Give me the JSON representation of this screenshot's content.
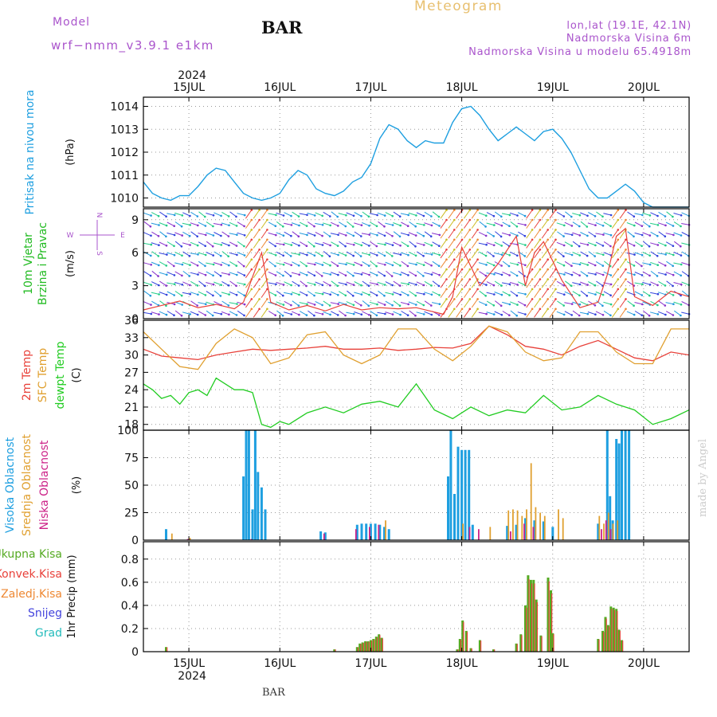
{
  "header": {
    "model_label": "Model",
    "model_name": "wrf−nmm_v3.9.1  e1km",
    "station": "BAR",
    "title": "Meteogram",
    "lonlat": "lon,lat (19.1E, 42.1N)",
    "altitude": "Nadmorska Visina 6m",
    "model_altitude": "Nadmorska Visina u modelu 65.4918m",
    "footer_station": "BAR",
    "watermark": "made by Angel"
  },
  "colors": {
    "pressure": "#1e9fe0",
    "t2m": "#e8413a",
    "tsfc": "#e0a030",
    "dewpt": "#22cc22",
    "high_cloud": "#1e9fe0",
    "mid_cloud": "#e0a030",
    "low_cloud": "#cc2288",
    "total_rain": "#55aa22",
    "conv_rain": "#e8413a",
    "freezing_rain": "#ee8833",
    "snow": "#4444dd",
    "hail": "#22bbbb",
    "wind_label": "#22bb22",
    "compass": "#aa55cc",
    "title_gold": "#e8c070",
    "header_purple": "#aa55cc"
  },
  "chart_data": {
    "type": "line",
    "x_axis": {
      "year": "2024",
      "tick_labels": [
        "15JUL",
        "16JUL",
        "17JUL",
        "18JUL",
        "19JUL",
        "20JUL"
      ],
      "range_days": [
        14.5,
        20.5
      ]
    },
    "panels": [
      {
        "name": "pressure",
        "ylabel": "Pritisak na nivou mora",
        "unit": "(hPa)",
        "ylim": [
          1009.6,
          1014.4
        ],
        "yticks": [
          1010,
          1011,
          1012,
          1013,
          1014
        ],
        "series": [
          {
            "color_key": "pressure",
            "x": [
              14.5,
              14.6,
              14.7,
              14.8,
              14.9,
              15.0,
              15.1,
              15.2,
              15.3,
              15.4,
              15.5,
              15.6,
              15.7,
              15.8,
              15.9,
              16.0,
              16.1,
              16.2,
              16.3,
              16.4,
              16.5,
              16.6,
              16.7,
              16.8,
              16.9,
              17.0,
              17.1,
              17.2,
              17.3,
              17.4,
              17.5,
              17.6,
              17.7,
              17.8,
              17.9,
              18.0,
              18.1,
              18.2,
              18.3,
              18.4,
              18.5,
              18.6,
              18.7,
              18.8,
              18.9,
              19.0,
              19.1,
              19.2,
              19.3,
              19.4,
              19.5,
              19.6,
              19.7,
              19.8,
              19.9,
              20.0,
              20.1,
              20.2,
              20.3,
              20.4,
              20.5
            ],
            "values": [
              1010.7,
              1010.2,
              1010.0,
              1009.9,
              1010.1,
              1010.1,
              1010.5,
              1011.0,
              1011.3,
              1011.2,
              1010.7,
              1010.2,
              1010.0,
              1009.9,
              1010.0,
              1010.2,
              1010.8,
              1011.2,
              1011.0,
              1010.4,
              1010.2,
              1010.1,
              1010.3,
              1010.7,
              1010.9,
              1011.5,
              1012.6,
              1013.2,
              1013.0,
              1012.5,
              1012.2,
              1012.5,
              1012.4,
              1012.4,
              1013.3,
              1013.9,
              1014.0,
              1013.6,
              1013.0,
              1012.5,
              1012.8,
              1013.1,
              1012.8,
              1012.5,
              1012.9,
              1013.0,
              1012.6,
              1012.0,
              1011.2,
              1010.4,
              1010.0,
              1010.0,
              1010.3,
              1010.6,
              1010.3,
              1009.8,
              1009.6,
              1009.6,
              1009.6,
              1009.6,
              1009.6
            ]
          }
        ]
      },
      {
        "name": "wind",
        "ylabel_line1": "10m Vjetar",
        "ylabel_line2": "Brzina i Pravac",
        "unit": "(m/s)",
        "ylim": [
          0,
          10
        ],
        "yticks": [
          0,
          3,
          6,
          9
        ],
        "compass": {
          "n": "N",
          "s": "S",
          "e": "E",
          "w": "W"
        },
        "series": [
          {
            "color_key": "t2m",
            "x": [
              14.5,
              14.7,
              14.9,
              15.1,
              15.3,
              15.5,
              15.6,
              15.7,
              15.8,
              15.9,
              16.1,
              16.3,
              16.5,
              16.7,
              16.9,
              17.1,
              17.3,
              17.5,
              17.7,
              17.8,
              17.9,
              18.0,
              18.2,
              18.4,
              18.6,
              18.7,
              18.8,
              18.9,
              19.1,
              19.3,
              19.5,
              19.6,
              19.7,
              19.8,
              19.9,
              20.1,
              20.3,
              20.5
            ],
            "values": [
              0.8,
              1.2,
              1.6,
              1.0,
              1.3,
              0.9,
              1.5,
              3.8,
              6.0,
              1.5,
              0.8,
              1.2,
              0.7,
              1.3,
              0.8,
              1.0,
              0.9,
              1.0,
              0.6,
              0.4,
              2.0,
              6.5,
              3.0,
              5.0,
              7.5,
              3.0,
              6.0,
              7.0,
              3.5,
              1.0,
              1.5,
              4.0,
              7.5,
              8.2,
              2.0,
              1.2,
              2.5,
              2.0
            ]
          }
        ]
      },
      {
        "name": "temperature",
        "ylabel_1": "2m Temp",
        "ylabel_2": "SFC Temp",
        "ylabel_3": "dewpt Temp",
        "unit": "(C)",
        "ylim": [
          17,
          36
        ],
        "yticks": [
          18,
          21,
          24,
          27,
          30,
          33,
          36
        ],
        "series": [
          {
            "name": "2m Temp",
            "color_key": "t2m",
            "x": [
              14.5,
              14.7,
              14.9,
              15.1,
              15.3,
              15.5,
              15.7,
              15.9,
              16.1,
              16.3,
              16.5,
              16.7,
              16.9,
              17.1,
              17.3,
              17.5,
              17.7,
              17.9,
              18.1,
              18.3,
              18.5,
              18.7,
              18.9,
              19.1,
              19.3,
              19.5,
              19.7,
              19.9,
              20.1,
              20.3,
              20.5
            ],
            "values": [
              31.0,
              29.8,
              29.5,
              29.2,
              30.0,
              30.5,
              31.0,
              30.8,
              31.0,
              31.2,
              31.5,
              31.0,
              31.0,
              31.2,
              30.8,
              31.0,
              31.3,
              31.2,
              32.0,
              35.0,
              33.5,
              31.5,
              31.0,
              30.0,
              31.5,
              32.5,
              31.0,
              29.5,
              29.0,
              30.5,
              30.0
            ]
          },
          {
            "name": "SFC Temp",
            "color_key": "tsfc",
            "x": [
              14.5,
              14.7,
              14.9,
              15.1,
              15.3,
              15.5,
              15.7,
              15.9,
              16.1,
              16.3,
              16.5,
              16.7,
              16.9,
              17.1,
              17.3,
              17.5,
              17.7,
              17.9,
              18.1,
              18.3,
              18.5,
              18.7,
              18.9,
              19.1,
              19.3,
              19.5,
              19.7,
              19.9,
              20.1,
              20.3,
              20.5
            ],
            "values": [
              34.0,
              31.0,
              28.0,
              27.5,
              32.0,
              34.5,
              33.0,
              28.5,
              29.5,
              33.5,
              34.0,
              30.0,
              28.5,
              30.0,
              34.5,
              34.5,
              31.0,
              29.0,
              31.5,
              35.0,
              34.0,
              30.5,
              29.0,
              29.5,
              34.0,
              34.0,
              30.5,
              28.5,
              28.5,
              34.5,
              34.5
            ]
          },
          {
            "name": "dewpt Temp",
            "color_key": "dewpt",
            "x": [
              14.5,
              14.6,
              14.7,
              14.8,
              14.9,
              15.0,
              15.1,
              15.2,
              15.3,
              15.4,
              15.5,
              15.6,
              15.7,
              15.8,
              15.9,
              16.0,
              16.1,
              16.3,
              16.5,
              16.7,
              16.9,
              17.1,
              17.3,
              17.5,
              17.7,
              17.9,
              18.1,
              18.3,
              18.5,
              18.7,
              18.9,
              19.1,
              19.3,
              19.5,
              19.7,
              19.9,
              20.1,
              20.3,
              20.5
            ],
            "values": [
              25.0,
              24.0,
              22.5,
              23.0,
              21.5,
              23.5,
              24.0,
              23.0,
              26.0,
              25.0,
              24.0,
              24.0,
              23.5,
              18.0,
              17.5,
              18.5,
              18.0,
              20.0,
              21.0,
              20.0,
              21.5,
              22.0,
              21.0,
              25.0,
              20.5,
              19.0,
              21.0,
              19.5,
              20.5,
              20.0,
              23.0,
              20.5,
              21.0,
              23.0,
              21.5,
              20.5,
              18.0,
              19.0,
              20.5
            ]
          }
        ]
      },
      {
        "name": "clouds",
        "ylabel_1": "Visoka Oblacnost",
        "ylabel_2": "Srednja Oblacnost",
        "ylabel_3": "Niska Oblacnost",
        "unit": "(%)",
        "ylim": [
          0,
          100
        ],
        "yticks": [
          0,
          25,
          50,
          75,
          100
        ],
        "series": [
          {
            "name": "Visoka Oblacnost",
            "color_key": "high_cloud",
            "x": [
              14.75,
              15.6,
              15.63,
              15.66,
              15.7,
              15.73,
              15.76,
              15.8,
              15.84,
              16.45,
              16.5,
              16.85,
              16.9,
              16.95,
              17.0,
              17.05,
              17.1,
              17.15,
              17.2,
              17.85,
              17.88,
              17.92,
              17.96,
              18.0,
              18.04,
              18.08,
              18.12,
              18.5,
              18.6,
              18.7,
              18.8,
              18.9,
              19.0,
              19.5,
              19.6,
              19.63,
              19.66,
              19.7,
              19.73,
              19.76,
              19.8,
              19.84
            ],
            "values": [
              10,
              58,
              100,
              100,
              28,
              100,
              62,
              48,
              28,
              8,
              7,
              14,
              15,
              15,
              15,
              15,
              14,
              12,
              10,
              58,
              100,
              42,
              85,
              82,
              82,
              82,
              14,
              13,
              14,
              20,
              18,
              17,
              12,
              15,
              100,
              40,
              18,
              92,
              88,
              100,
              100,
              100
            ]
          },
          {
            "name": "Srednja Oblacnost",
            "color_key": "mid_cloud",
            "x": [
              14.8,
              15.0,
              17.15,
              18.0,
              18.3,
              18.5,
              18.55,
              18.6,
              18.65,
              18.7,
              18.75,
              18.8,
              18.85,
              18.9,
              19.05,
              19.1,
              19.5,
              19.55,
              19.6,
              19.65,
              19.7
            ],
            "values": [
              6,
              2,
              18,
              15,
              12,
              27,
              28,
              27,
              22,
              28,
              70,
              30,
              25,
              22,
              28,
              20,
              22,
              15,
              25,
              15,
              18
            ]
          },
          {
            "name": "Niska Oblacnost",
            "color_key": "low_cloud",
            "x": [
              15.0,
              15.7,
              16.5,
              16.85,
              17.0,
              17.1,
              18.1,
              18.2,
              18.55,
              18.7,
              18.8,
              19.55,
              19.6,
              19.65
            ],
            "values": [
              1,
              1,
              6,
              10,
              12,
              14,
              12,
              10,
              8,
              15,
              12,
              10,
              18,
              10
            ]
          }
        ]
      },
      {
        "name": "precip",
        "ylabel": "1hr Precip (mm)",
        "legend": [
          "Ukupna Kisa",
          "Konvek.Kisa",
          "Zaledj.Kisa",
          "Snijeg",
          "Grad"
        ],
        "ylim": [
          0,
          0.95
        ],
        "yticks": [
          0,
          0.2,
          0.4,
          0.6,
          0.8
        ],
        "ytick_labels": [
          "0",
          "0.2",
          "0.4",
          "0.6",
          "0.8"
        ],
        "series": [
          {
            "name": "Ukupna Kisa",
            "color_key": "total_rain",
            "x": [
              14.75,
              16.6,
              16.85,
              16.88,
              16.91,
              16.94,
              16.97,
              17.0,
              17.03,
              17.06,
              17.09,
              17.12,
              17.95,
              17.98,
              18.01,
              18.05,
              18.1,
              18.2,
              18.35,
              18.6,
              18.65,
              18.7,
              18.73,
              18.76,
              18.79,
              18.82,
              18.87,
              18.95,
              18.98,
              19.0,
              19.5,
              19.55,
              19.58,
              19.61,
              19.64,
              19.67,
              19.7,
              19.73,
              19.76
            ],
            "values": [
              0.04,
              0.02,
              0.04,
              0.07,
              0.08,
              0.09,
              0.09,
              0.1,
              0.11,
              0.13,
              0.15,
              0.12,
              0.02,
              0.11,
              0.27,
              0.18,
              0.03,
              0.1,
              0.02,
              0.07,
              0.15,
              0.4,
              0.66,
              0.62,
              0.62,
              0.45,
              0.14,
              0.64,
              0.53,
              0.16,
              0.11,
              0.18,
              0.3,
              0.23,
              0.39,
              0.38,
              0.37,
              0.19,
              0.1
            ]
          }
        ]
      }
    ]
  }
}
